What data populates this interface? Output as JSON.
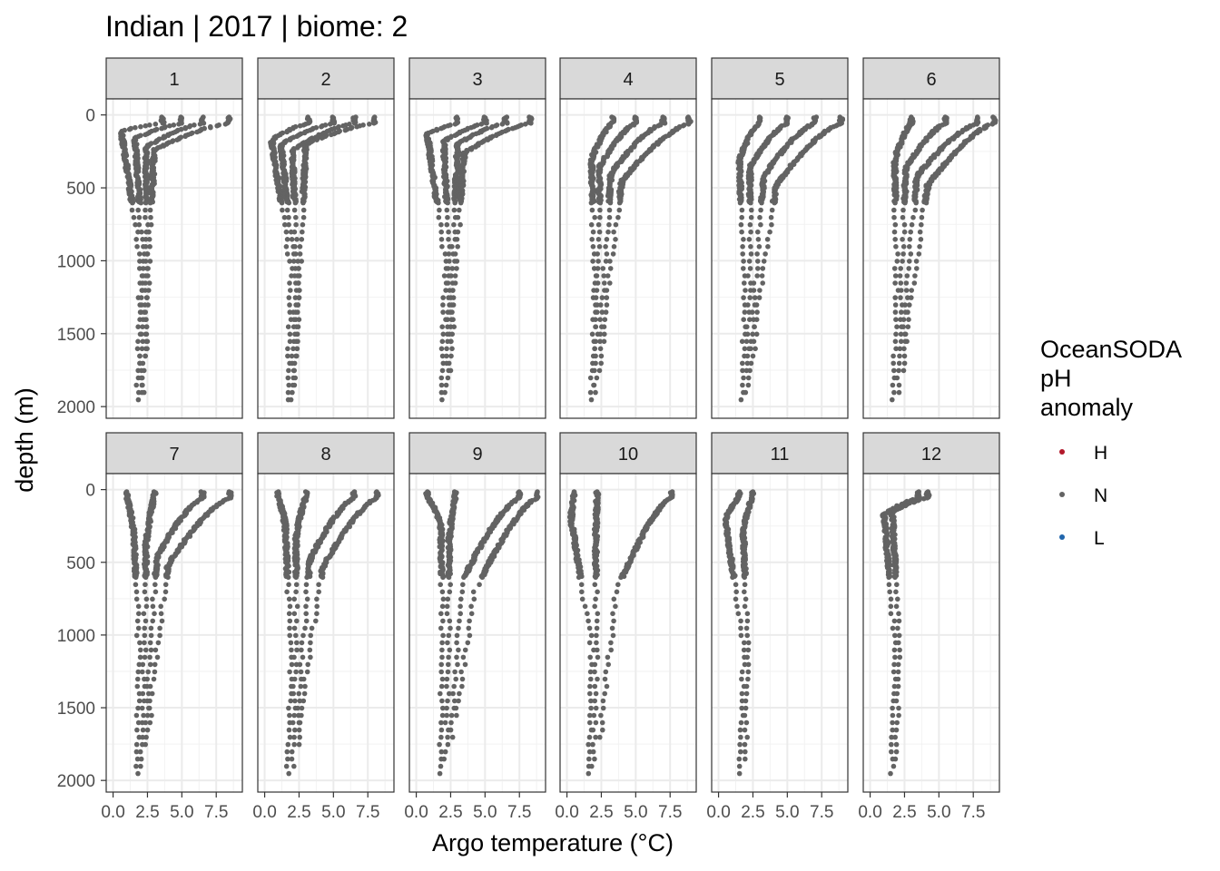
{
  "chart_data": {
    "type": "scatter",
    "title": "Indian | 2017 | biome: 2",
    "xlabel": "Argo temperature (°C)",
    "ylabel": "depth (m)",
    "x_ticks": [
      0.0,
      2.5,
      5.0,
      7.5
    ],
    "x_tick_labels": [
      "0.0",
      "2.5",
      "5.0",
      "7.5"
    ],
    "xlim": [
      -0.5,
      9.4
    ],
    "y_ticks": [
      0,
      500,
      1000,
      1500,
      2000
    ],
    "y_tick_labels": [
      "0",
      "500",
      "1000",
      "1500",
      "2000"
    ],
    "ylim": [
      2080,
      -110
    ],
    "y_reversed": true,
    "grid": true,
    "facet_labels": [
      "1",
      "2",
      "3",
      "4",
      "5",
      "6",
      "7",
      "8",
      "9",
      "10",
      "11",
      "12"
    ],
    "legend": {
      "title_lines": [
        "OceanSODA",
        "pH",
        "anomaly"
      ],
      "position": "right",
      "entries": [
        {
          "label": "H",
          "color": "#B2182B"
        },
        {
          "label": "N",
          "color": "#636363"
        },
        {
          "label": "L",
          "color": "#2166AC"
        }
      ]
    },
    "panels": [
      {
        "month": "1",
        "category": "N",
        "profiles": [
          {
            "surface_temp": 3.6,
            "min_temp": 0.6,
            "min_depth": 110,
            "deep_temp": 2.1,
            "bottom_depth": 1980
          },
          {
            "surface_temp": 5.0,
            "min_temp": 1.6,
            "min_depth": 160,
            "deep_temp": 2.3,
            "bottom_depth": 1950
          },
          {
            "surface_temp": 6.5,
            "min_temp": 2.4,
            "min_depth": 220,
            "deep_temp": 2.5,
            "bottom_depth": 1920
          },
          {
            "surface_temp": 8.4,
            "min_temp": 3.0,
            "min_depth": 240,
            "deep_temp": 2.6,
            "bottom_depth": 1700
          }
        ]
      },
      {
        "month": "2",
        "category": "N",
        "profiles": [
          {
            "surface_temp": 3.2,
            "min_temp": 0.5,
            "min_depth": 170,
            "deep_temp": 2.0,
            "bottom_depth": 1990
          },
          {
            "surface_temp": 5.0,
            "min_temp": 1.2,
            "min_depth": 200,
            "deep_temp": 2.3,
            "bottom_depth": 1970
          },
          {
            "surface_temp": 6.5,
            "min_temp": 2.0,
            "min_depth": 240,
            "deep_temp": 2.5,
            "bottom_depth": 1900
          },
          {
            "surface_temp": 8.0,
            "min_temp": 3.0,
            "min_depth": 200,
            "deep_temp": 2.6,
            "bottom_depth": 1700
          }
        ]
      },
      {
        "month": "3",
        "category": "N",
        "profiles": [
          {
            "surface_temp": 3.0,
            "min_temp": 0.8,
            "min_depth": 130,
            "deep_temp": 2.2,
            "bottom_depth": 1980
          },
          {
            "surface_temp": 5.0,
            "min_temp": 2.0,
            "min_depth": 180,
            "deep_temp": 2.5,
            "bottom_depth": 1950
          },
          {
            "surface_temp": 6.5,
            "min_temp": 3.0,
            "min_depth": 200,
            "deep_temp": 2.7,
            "bottom_depth": 1800
          },
          {
            "surface_temp": 8.3,
            "min_temp": 3.5,
            "min_depth": 260,
            "deep_temp": 2.8,
            "bottom_depth": 1600
          }
        ]
      },
      {
        "month": "4",
        "category": "N",
        "profiles": [
          {
            "surface_temp": 3.3,
            "min_temp": 1.8,
            "min_depth": 300,
            "deep_temp": 2.1,
            "bottom_depth": 1980
          },
          {
            "surface_temp": 5.0,
            "min_temp": 2.4,
            "min_depth": 350,
            "deep_temp": 2.3,
            "bottom_depth": 1950
          },
          {
            "surface_temp": 7.0,
            "min_temp": 3.2,
            "min_depth": 400,
            "deep_temp": 2.6,
            "bottom_depth": 1800
          },
          {
            "surface_temp": 8.9,
            "min_temp": 4.0,
            "min_depth": 450,
            "deep_temp": 2.8,
            "bottom_depth": 1600
          }
        ]
      },
      {
        "month": "5",
        "category": "N",
        "profiles": [
          {
            "surface_temp": 3.0,
            "min_temp": 1.5,
            "min_depth": 300,
            "deep_temp": 2.0,
            "bottom_depth": 1980
          },
          {
            "surface_temp": 5.0,
            "min_temp": 2.3,
            "min_depth": 350,
            "deep_temp": 2.3,
            "bottom_depth": 1950
          },
          {
            "surface_temp": 7.0,
            "min_temp": 3.3,
            "min_depth": 420,
            "deep_temp": 2.6,
            "bottom_depth": 1800
          },
          {
            "surface_temp": 8.9,
            "min_temp": 4.2,
            "min_depth": 480,
            "deep_temp": 2.8,
            "bottom_depth": 1650
          }
        ]
      },
      {
        "month": "6",
        "category": "N",
        "profiles": [
          {
            "surface_temp": 3.0,
            "min_temp": 1.8,
            "min_depth": 300,
            "deep_temp": 2.0,
            "bottom_depth": 1980
          },
          {
            "surface_temp": 5.5,
            "min_temp": 2.6,
            "min_depth": 360,
            "deep_temp": 2.3,
            "bottom_depth": 1950
          },
          {
            "surface_temp": 7.8,
            "min_temp": 3.4,
            "min_depth": 420,
            "deep_temp": 2.6,
            "bottom_depth": 1800
          },
          {
            "surface_temp": 9.0,
            "min_temp": 4.2,
            "min_depth": 480,
            "deep_temp": 2.8,
            "bottom_depth": 1600
          }
        ]
      },
      {
        "month": "7",
        "category": "N",
        "profiles": [
          {
            "surface_temp": 1.0,
            "min_temp": 1.5,
            "min_depth": 300,
            "deep_temp": 2.0,
            "bottom_depth": 1980
          },
          {
            "surface_temp": 3.0,
            "min_temp": 2.4,
            "min_depth": 380,
            "deep_temp": 2.3,
            "bottom_depth": 1950
          },
          {
            "surface_temp": 6.5,
            "min_temp": 3.2,
            "min_depth": 460,
            "deep_temp": 2.6,
            "bottom_depth": 1800
          },
          {
            "surface_temp": 8.5,
            "min_temp": 4.0,
            "min_depth": 520,
            "deep_temp": 2.8,
            "bottom_depth": 1650
          }
        ]
      },
      {
        "month": "8",
        "category": "N",
        "profiles": [
          {
            "surface_temp": 1.0,
            "min_temp": 1.5,
            "min_depth": 250,
            "deep_temp": 2.0,
            "bottom_depth": 1980
          },
          {
            "surface_temp": 3.0,
            "min_temp": 2.3,
            "min_depth": 320,
            "deep_temp": 2.3,
            "bottom_depth": 1950
          },
          {
            "surface_temp": 6.5,
            "min_temp": 3.3,
            "min_depth": 480,
            "deep_temp": 2.6,
            "bottom_depth": 1800
          },
          {
            "surface_temp": 8.2,
            "min_temp": 4.2,
            "min_depth": 540,
            "deep_temp": 2.8,
            "bottom_depth": 1650
          }
        ]
      },
      {
        "month": "9",
        "category": "N",
        "profiles": [
          {
            "surface_temp": 0.8,
            "min_temp": 1.8,
            "min_depth": 250,
            "deep_temp": 2.0,
            "bottom_depth": 1980
          },
          {
            "surface_temp": 2.8,
            "min_temp": 2.4,
            "min_depth": 350,
            "deep_temp": 2.4,
            "bottom_depth": 1900
          },
          {
            "surface_temp": 7.5,
            "min_temp": 3.4,
            "min_depth": 620,
            "deep_temp": 2.7,
            "bottom_depth": 1750
          },
          {
            "surface_temp": 8.8,
            "min_temp": 4.2,
            "min_depth": 720,
            "deep_temp": 2.9,
            "bottom_depth": 1600
          }
        ]
      },
      {
        "month": "10",
        "category": "N",
        "profiles": [
          {
            "surface_temp": 0.5,
            "min_temp": 0.3,
            "min_depth": 200,
            "deep_temp": 1.9,
            "bottom_depth": 1990
          },
          {
            "surface_temp": 2.2,
            "min_temp": 2.1,
            "min_depth": 300,
            "deep_temp": 2.2,
            "bottom_depth": 1950
          },
          {
            "surface_temp": 7.6,
            "min_temp": 3.6,
            "min_depth": 700,
            "deep_temp": 2.6,
            "bottom_depth": 1750
          }
        ]
      },
      {
        "month": "11",
        "category": "N",
        "profiles": [
          {
            "surface_temp": 1.5,
            "min_temp": 0.5,
            "min_depth": 200,
            "deep_temp": 1.9,
            "bottom_depth": 1980
          },
          {
            "surface_temp": 2.5,
            "min_temp": 1.8,
            "min_depth": 260,
            "deep_temp": 2.2,
            "bottom_depth": 1900
          }
        ]
      },
      {
        "month": "12",
        "category": "N",
        "profiles": [
          {
            "surface_temp": 3.5,
            "min_temp": 1.0,
            "min_depth": 170,
            "deep_temp": 1.9,
            "bottom_depth": 1980
          },
          {
            "surface_temp": 4.2,
            "min_temp": 1.6,
            "min_depth": 150,
            "deep_temp": 2.2,
            "bottom_depth": 1900
          }
        ]
      }
    ]
  }
}
